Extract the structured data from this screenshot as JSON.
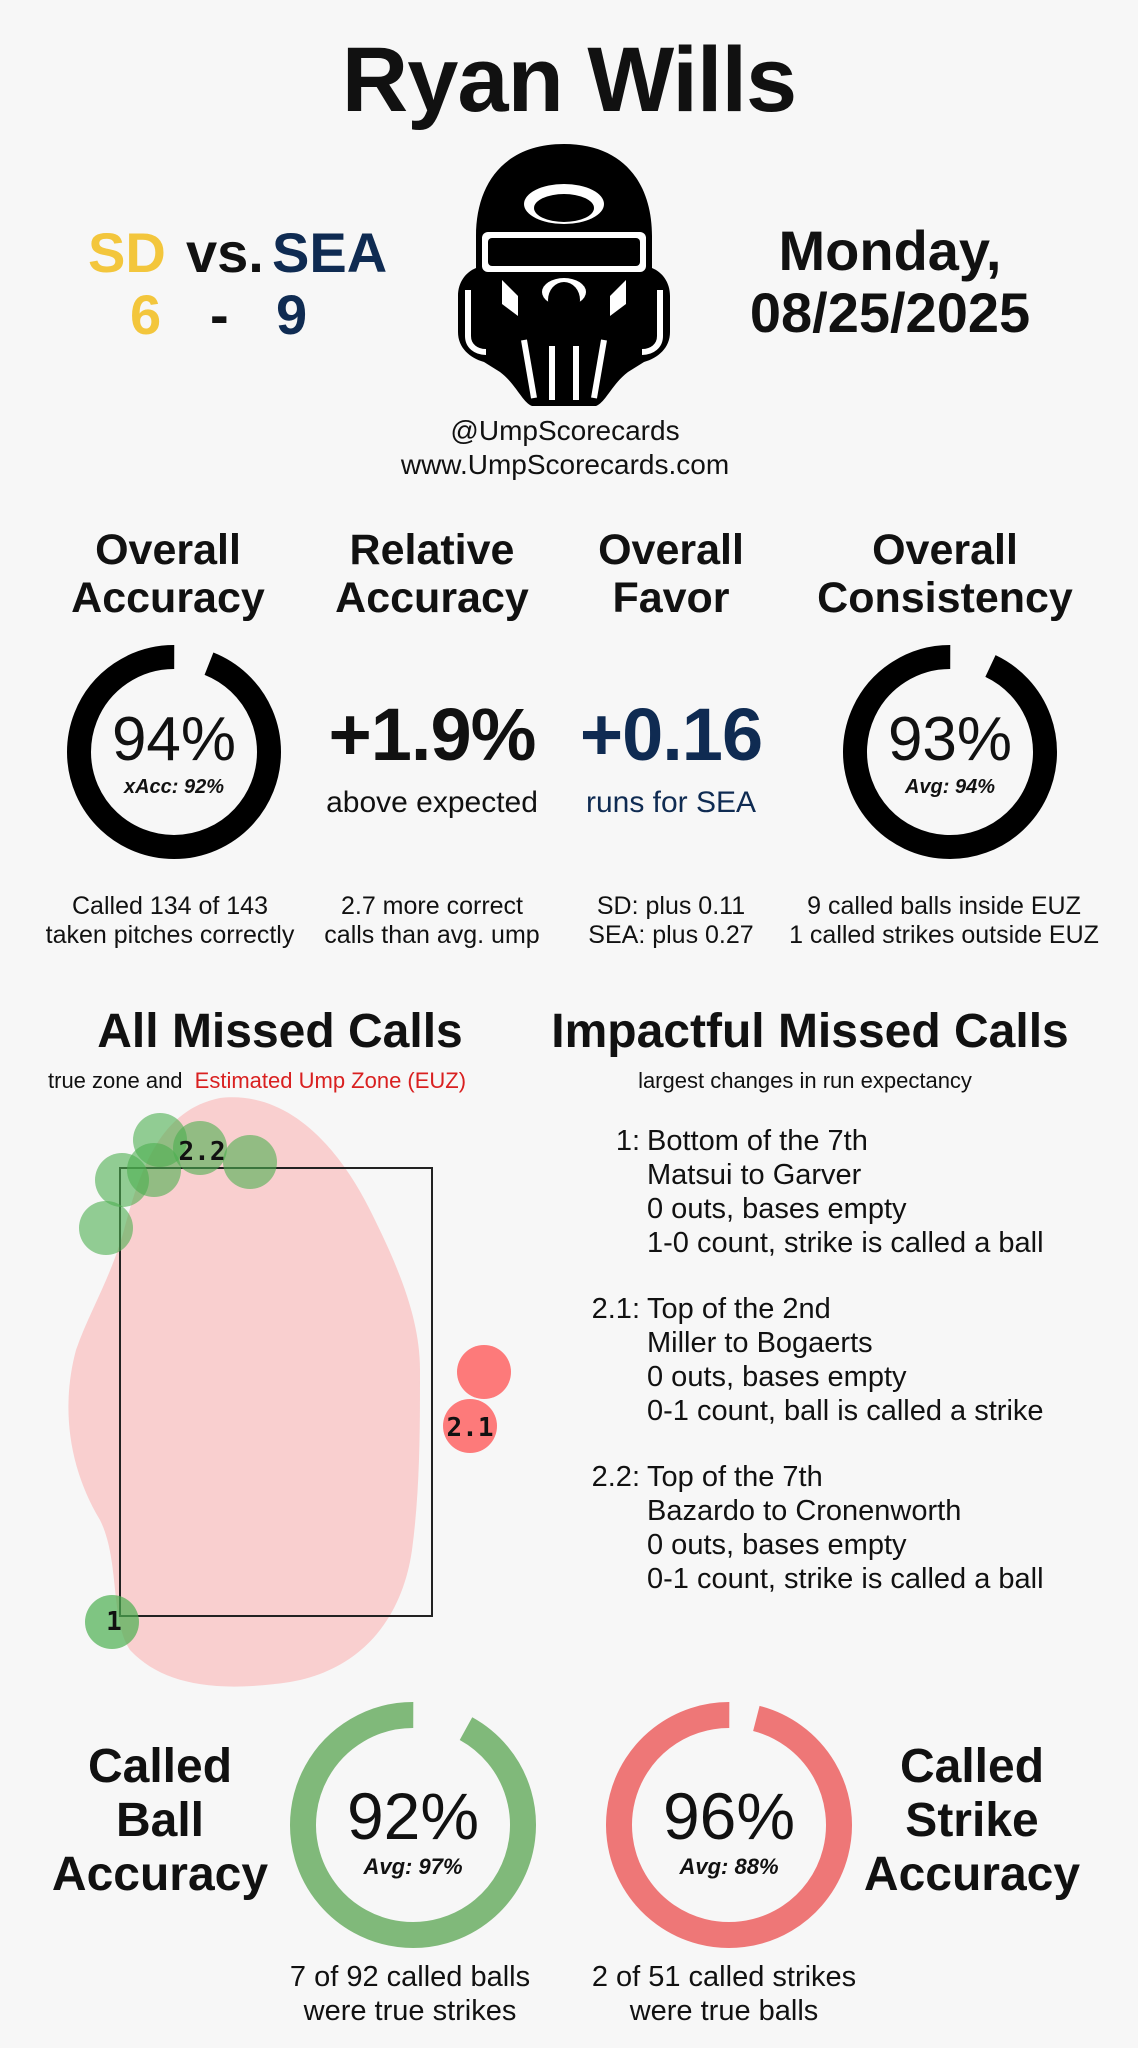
{
  "umpire_name": "Ryan Wills",
  "game": {
    "away_team": "SD",
    "vs_label": "vs.",
    "home_team": "SEA",
    "away_score": "6",
    "score_sep": "-",
    "home_score": "9",
    "date_line1": "Monday,",
    "date_line2": "08/25/2025"
  },
  "social": {
    "handle": "@UmpScorecards",
    "website": "www.UmpScorecards.com"
  },
  "metrics": {
    "overall_accuracy": {
      "head1": "Overall",
      "head2": "Accuracy",
      "value": "94%",
      "fraction": 0.94,
      "sub": "xAcc: 92%",
      "foot1": "Called 134 of 143",
      "foot2": "taken pitches correctly"
    },
    "relative_accuracy": {
      "head1": "Relative",
      "head2": "Accuracy",
      "value": "+1.9%",
      "sub": "above expected",
      "foot1": "2.7 more correct",
      "foot2": "calls than avg. ump"
    },
    "overall_favor": {
      "head1": "Overall",
      "head2": "Favor",
      "value": "+0.16",
      "sub": "runs for SEA",
      "foot1": "SD: plus 0.11",
      "foot2": "SEA: plus 0.27"
    },
    "overall_consistency": {
      "head1": "Overall",
      "head2": "Consistency",
      "value": "93%",
      "fraction": 0.93,
      "sub": "Avg: 94%",
      "foot1": "9 called balls inside EUZ",
      "foot2": "1 called strikes outside EUZ"
    }
  },
  "all_missed": {
    "title": "All Missed Calls",
    "legend_prefix": "true zone and",
    "legend_euz": "Estimated Ump Zone (EUZ)",
    "point_labels": [
      "2.2",
      "2.1",
      "1"
    ]
  },
  "impactful": {
    "title": "Impactful Missed Calls",
    "subtitle": "largest changes in run expectancy",
    "calls": [
      {
        "label": "1:",
        "inning": "Bottom of the 7th",
        "matchup": "Matsui to Garver",
        "situation": "0 outs, bases empty",
        "count": "1-0 count, strike is called a ball"
      },
      {
        "label": "2.1:",
        "inning": "Top of the 2nd",
        "matchup": "Miller to Bogaerts",
        "situation": "0 outs, bases empty",
        "count": "0-1 count, ball is called a strike"
      },
      {
        "label": "2.2:",
        "inning": "Top of the 7th",
        "matchup": "Bazardo to Cronenworth",
        "situation": "0 outs, bases empty",
        "count": "0-1 count, strike is called a ball"
      }
    ]
  },
  "called_ball": {
    "head1": "Called",
    "head2": "Ball",
    "head3": "Accuracy",
    "value": "92%",
    "fraction": 0.92,
    "avg": "Avg: 97%",
    "foot1": "7 of 92 called balls",
    "foot2": "were true strikes"
  },
  "called_strike": {
    "head1": "Called",
    "head2": "Strike",
    "head3": "Accuracy",
    "value": "96%",
    "fraction": 0.96,
    "avg": "Avg: 88%",
    "foot1": "2 of 51 called strikes",
    "foot2": "were true balls"
  },
  "colors": {
    "sd": "#f3c63c",
    "sea": "#0f2b52",
    "ball_green": "#80b97a",
    "strike_red": "#ee7777",
    "euz_pink": "#f8caca",
    "miss_green": "#4caf50",
    "miss_red": "#ff4444",
    "euz_text": "#d92020"
  }
}
